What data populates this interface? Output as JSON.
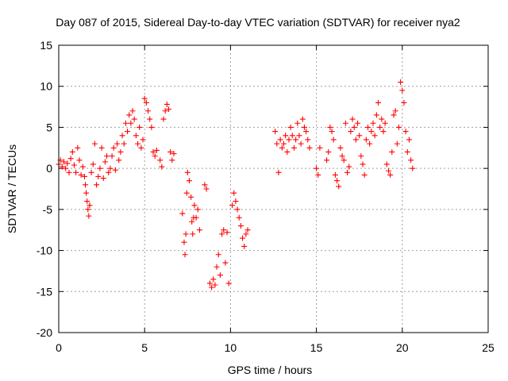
{
  "chart_data": {
    "type": "scatter",
    "title": "Day 087 of 2015, Sidereal Day-to-day VTEC variation (SDTVAR) for receiver nya2",
    "xlabel": "GPS time / hours",
    "ylabel": "SDTVAR / TECUs",
    "xlim": [
      0,
      25
    ],
    "ylim": [
      -20,
      15
    ],
    "xticks": [
      "0",
      "5",
      "10",
      "15",
      "20",
      "25"
    ],
    "yticks": [
      "-20",
      "-15",
      "-10",
      "-5",
      "0",
      "5",
      "10",
      "15"
    ],
    "xtick_values": [
      0,
      5,
      10,
      15,
      20,
      25
    ],
    "ytick_values": [
      -20,
      -15,
      -10,
      -5,
      0,
      5,
      10,
      15
    ],
    "grid": true,
    "marker": "+",
    "color": "#ff0000",
    "series": [
      {
        "name": "nya2",
        "points": [
          [
            0.0,
            0.5
          ],
          [
            0.1,
            1.0
          ],
          [
            0.2,
            0.2
          ],
          [
            0.3,
            0.8
          ],
          [
            0.4,
            0.0
          ],
          [
            0.5,
            0.6
          ],
          [
            0.6,
            -0.5
          ],
          [
            0.7,
            1.2
          ],
          [
            0.8,
            2.0
          ],
          [
            0.9,
            0.4
          ],
          [
            1.0,
            -0.5
          ],
          [
            1.1,
            2.5
          ],
          [
            1.2,
            1.0
          ],
          [
            1.3,
            -0.8
          ],
          [
            1.4,
            0.2
          ],
          [
            1.5,
            -1.0
          ],
          [
            1.55,
            -2.0
          ],
          [
            1.6,
            -3.0
          ],
          [
            1.65,
            -4.0
          ],
          [
            1.7,
            -5.0
          ],
          [
            1.75,
            -5.8
          ],
          [
            1.8,
            -4.5
          ],
          [
            1.9,
            -0.5
          ],
          [
            2.0,
            0.5
          ],
          [
            2.1,
            3.0
          ],
          [
            2.2,
            -2.0
          ],
          [
            2.3,
            -1.0
          ],
          [
            2.4,
            0.0
          ],
          [
            2.5,
            2.5
          ],
          [
            2.6,
            -1.2
          ],
          [
            2.7,
            0.8
          ],
          [
            2.8,
            1.5
          ],
          [
            2.9,
            -0.5
          ],
          [
            3.0,
            0.0
          ],
          [
            3.1,
            1.5
          ],
          [
            3.2,
            2.5
          ],
          [
            3.3,
            -0.2
          ],
          [
            3.4,
            3.0
          ],
          [
            3.5,
            1.0
          ],
          [
            3.6,
            2.0
          ],
          [
            3.7,
            4.0
          ],
          [
            3.8,
            3.0
          ],
          [
            3.9,
            5.5
          ],
          [
            4.0,
            4.5
          ],
          [
            4.1,
            6.5
          ],
          [
            4.2,
            5.5
          ],
          [
            4.3,
            7.0
          ],
          [
            4.4,
            6.0
          ],
          [
            4.5,
            4.0
          ],
          [
            4.6,
            3.0
          ],
          [
            4.7,
            5.0
          ],
          [
            4.8,
            2.5
          ],
          [
            4.9,
            3.5
          ],
          [
            5.0,
            8.5
          ],
          [
            5.1,
            8.0
          ],
          [
            5.2,
            7.0
          ],
          [
            5.3,
            6.0
          ],
          [
            5.4,
            5.0
          ],
          [
            5.5,
            2.0
          ],
          [
            5.6,
            1.5
          ],
          [
            5.7,
            2.2
          ],
          [
            5.9,
            1.0
          ],
          [
            6.0,
            0.2
          ],
          [
            6.1,
            6.0
          ],
          [
            6.2,
            7.0
          ],
          [
            6.3,
            7.8
          ],
          [
            6.4,
            7.2
          ],
          [
            6.5,
            2.0
          ],
          [
            6.6,
            1.0
          ],
          [
            6.7,
            1.8
          ],
          [
            7.2,
            -5.5
          ],
          [
            7.3,
            -9.0
          ],
          [
            7.35,
            -10.5
          ],
          [
            7.4,
            -8.0
          ],
          [
            7.45,
            -3.0
          ],
          [
            7.5,
            -0.5
          ],
          [
            7.6,
            -1.5
          ],
          [
            7.7,
            -3.5
          ],
          [
            7.75,
            -6.5
          ],
          [
            7.8,
            -8.0
          ],
          [
            7.85,
            -6.0
          ],
          [
            7.9,
            -4.5
          ],
          [
            8.0,
            -6.0
          ],
          [
            8.1,
            -5.0
          ],
          [
            8.2,
            -7.5
          ],
          [
            8.5,
            -2.0
          ],
          [
            8.6,
            -2.5
          ],
          [
            8.8,
            -14.0
          ],
          [
            8.9,
            -14.5
          ],
          [
            9.0,
            -13.5
          ],
          [
            9.1,
            -14.2
          ],
          [
            9.2,
            -12.0
          ],
          [
            9.3,
            -10.5
          ],
          [
            9.4,
            -13.0
          ],
          [
            9.5,
            -8.0
          ],
          [
            9.6,
            -7.5
          ],
          [
            9.7,
            -11.5
          ],
          [
            9.8,
            -7.8
          ],
          [
            9.9,
            -14.0
          ],
          [
            10.1,
            -4.5
          ],
          [
            10.2,
            -3.0
          ],
          [
            10.3,
            -4.0
          ],
          [
            10.4,
            -5.0
          ],
          [
            10.5,
            -6.0
          ],
          [
            10.6,
            -7.0
          ],
          [
            10.7,
            -8.5
          ],
          [
            10.8,
            -9.5
          ],
          [
            10.9,
            -8.0
          ],
          [
            11.0,
            -7.5
          ],
          [
            12.6,
            4.5
          ],
          [
            12.7,
            3.0
          ],
          [
            12.8,
            -0.5
          ],
          [
            12.9,
            3.5
          ],
          [
            13.0,
            2.5
          ],
          [
            13.1,
            3.0
          ],
          [
            13.2,
            4.0
          ],
          [
            13.3,
            2.0
          ],
          [
            13.4,
            3.5
          ],
          [
            13.5,
            5.0
          ],
          [
            13.6,
            4.0
          ],
          [
            13.7,
            2.5
          ],
          [
            13.8,
            3.5
          ],
          [
            13.9,
            5.5
          ],
          [
            14.0,
            4.0
          ],
          [
            14.1,
            3.0
          ],
          [
            14.2,
            6.0
          ],
          [
            14.3,
            5.0
          ],
          [
            14.4,
            4.5
          ],
          [
            14.5,
            3.5
          ],
          [
            14.6,
            2.5
          ],
          [
            15.0,
            0.0
          ],
          [
            15.1,
            -0.8
          ],
          [
            15.2,
            2.5
          ],
          [
            15.6,
            1.0
          ],
          [
            15.7,
            2.0
          ],
          [
            15.8,
            5.0
          ],
          [
            15.9,
            4.5
          ],
          [
            16.0,
            3.5
          ],
          [
            16.1,
            -0.8
          ],
          [
            16.2,
            -1.5
          ],
          [
            16.3,
            -2.2
          ],
          [
            16.4,
            2.5
          ],
          [
            16.5,
            1.5
          ],
          [
            16.6,
            1.0
          ],
          [
            16.7,
            5.5
          ],
          [
            16.8,
            -0.5
          ],
          [
            16.9,
            0.2
          ],
          [
            17.0,
            4.5
          ],
          [
            17.1,
            6.0
          ],
          [
            17.2,
            5.0
          ],
          [
            17.3,
            3.5
          ],
          [
            17.4,
            5.5
          ],
          [
            17.5,
            4.0
          ],
          [
            17.6,
            1.5
          ],
          [
            17.7,
            0.5
          ],
          [
            17.8,
            -0.8
          ],
          [
            17.9,
            3.5
          ],
          [
            18.0,
            5.0
          ],
          [
            18.1,
            3.0
          ],
          [
            18.2,
            4.5
          ],
          [
            18.3,
            5.5
          ],
          [
            18.4,
            4.0
          ],
          [
            18.5,
            6.5
          ],
          [
            18.6,
            8.0
          ],
          [
            18.7,
            5.0
          ],
          [
            18.8,
            6.0
          ],
          [
            18.9,
            4.5
          ],
          [
            19.0,
            5.5
          ],
          [
            19.1,
            0.5
          ],
          [
            19.2,
            -0.3
          ],
          [
            19.3,
            -0.8
          ],
          [
            19.4,
            2.0
          ],
          [
            19.5,
            6.5
          ],
          [
            19.6,
            7.0
          ],
          [
            19.7,
            3.0
          ],
          [
            19.8,
            5.0
          ],
          [
            19.9,
            10.5
          ],
          [
            20.0,
            9.5
          ],
          [
            20.1,
            8.0
          ],
          [
            20.2,
            4.5
          ],
          [
            20.3,
            2.0
          ],
          [
            20.4,
            3.5
          ],
          [
            20.5,
            1.0
          ],
          [
            20.6,
            0.0
          ]
        ]
      }
    ]
  }
}
